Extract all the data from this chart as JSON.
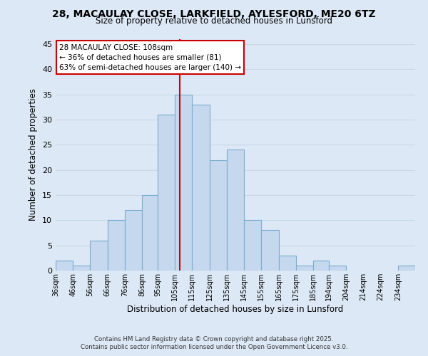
{
  "title": "28, MACAULAY CLOSE, LARKFIELD, AYLESFORD, ME20 6TZ",
  "subtitle": "Size of property relative to detached houses in Lunsford",
  "xlabel": "Distribution of detached houses by size in Lunsford",
  "ylabel": "Number of detached properties",
  "bin_labels": [
    "36sqm",
    "46sqm",
    "56sqm",
    "66sqm",
    "76sqm",
    "86sqm",
    "95sqm",
    "105sqm",
    "115sqm",
    "125sqm",
    "135sqm",
    "145sqm",
    "155sqm",
    "165sqm",
    "175sqm",
    "185sqm",
    "194sqm",
    "204sqm",
    "214sqm",
    "224sqm",
    "234sqm"
  ],
  "bin_edges": [
    36,
    46,
    56,
    66,
    76,
    86,
    95,
    105,
    115,
    125,
    135,
    145,
    155,
    165,
    175,
    185,
    194,
    204,
    214,
    224,
    234,
    244
  ],
  "counts": [
    2,
    1,
    6,
    10,
    12,
    15,
    31,
    35,
    33,
    22,
    24,
    10,
    8,
    3,
    1,
    2,
    1,
    0,
    0,
    0,
    1
  ],
  "bar_color": "#c5d8ee",
  "bar_edge_color": "#7aacd0",
  "grid_color": "#c8d8e8",
  "vline_x": 108,
  "vline_color": "#cc0000",
  "annotation_title": "28 MACAULAY CLOSE: 108sqm",
  "annotation_line1": "← 36% of detached houses are smaller (81)",
  "annotation_line2": "63% of semi-detached houses are larger (140) →",
  "annotation_box_color": "#ffffff",
  "annotation_box_edge": "#cc0000",
  "ylim": [
    0,
    46
  ],
  "yticks": [
    0,
    5,
    10,
    15,
    20,
    25,
    30,
    35,
    40,
    45
  ],
  "footer1": "Contains HM Land Registry data © Crown copyright and database right 2025.",
  "footer2": "Contains public sector information licensed under the Open Government Licence v3.0.",
  "bg_color": "#dce8f5"
}
